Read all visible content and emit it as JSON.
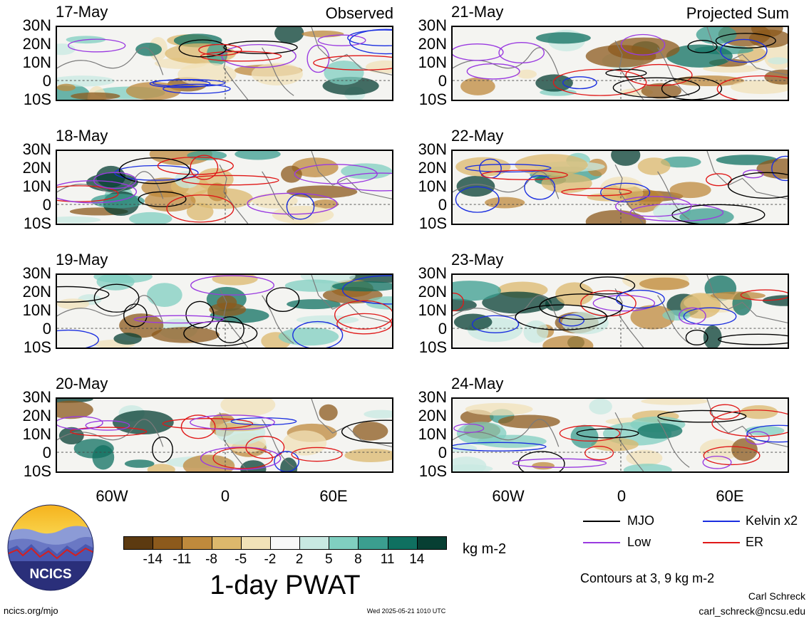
{
  "panels": [
    {
      "date": "17-May",
      "title": "Observed",
      "col": 0,
      "row": 0
    },
    {
      "date": "18-May",
      "title": "",
      "col": 0,
      "row": 1
    },
    {
      "date": "19-May",
      "title": "",
      "col": 0,
      "row": 2
    },
    {
      "date": "20-May",
      "title": "",
      "col": 0,
      "row": 3
    },
    {
      "date": "21-May",
      "title": "Projected Sum",
      "col": 1,
      "row": 0
    },
    {
      "date": "22-May",
      "title": "",
      "col": 1,
      "row": 1
    },
    {
      "date": "23-May",
      "title": "",
      "col": 1,
      "row": 2
    },
    {
      "date": "24-May",
      "title": "",
      "col": 1,
      "row": 3
    }
  ],
  "lat_labels": [
    "30N",
    "20N",
    "10N",
    "0",
    "10S"
  ],
  "lon_labels": [
    "60W",
    "0",
    "60E"
  ],
  "colorbar": {
    "title": "1-day PWAT",
    "units": "kg m-2",
    "labels": [
      "-14",
      "-11",
      "-8",
      "-5",
      "-2",
      "2",
      "5",
      "8",
      "11",
      "14"
    ],
    "colors": [
      "#5c3a10",
      "#8c5a1c",
      "#bf8a3c",
      "#dcb86c",
      "#f1e2b8",
      "#f7f7f7",
      "#c8e9e2",
      "#80cfc0",
      "#3b9e8f",
      "#0f7060",
      "#073f33"
    ]
  },
  "legend": [
    {
      "label": "MJO",
      "color": "#000000"
    },
    {
      "label": "Kelvin x2",
      "color": "#1a2ee0"
    },
    {
      "label": "Low",
      "color": "#9a3ae0"
    },
    {
      "label": "ER",
      "color": "#e01818"
    }
  ],
  "contour_note": "Contours at 3, 9 kg m-2",
  "logo_text": "NCICS",
  "footer": {
    "url": "ncics.org/mjo",
    "timestamp": "Wed 2025-05-21 1010 UTC",
    "author": "Carl Schreck",
    "email": "carl_schreck@ncsu.edu"
  }
}
